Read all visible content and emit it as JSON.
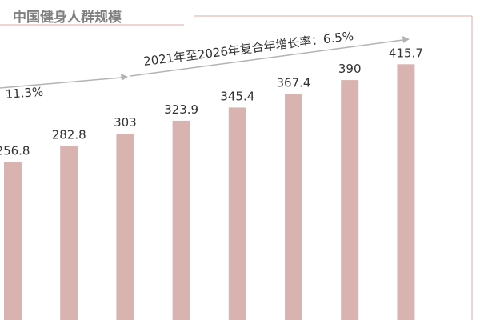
{
  "chart_data": {
    "type": "bar",
    "title": "中国健身人群规模",
    "categories": [
      "",
      "",
      "",
      "",
      "",
      "",
      "",
      ""
    ],
    "values": [
      256.8,
      282.8,
      303,
      323.9,
      345.4,
      367.4,
      390,
      415.7
    ],
    "value_labels": [
      "256.8",
      "282.8",
      "303",
      "323.9",
      "345.4",
      "367.4",
      "390",
      "415.7"
    ],
    "ylim": [
      0,
      460
    ],
    "grid": false,
    "bar_color": "#d9b3b0",
    "annotations": [
      {
        "text": "：11.3%"
      },
      {
        "text": "2021年至2026年复合年增长率：6.5%"
      }
    ]
  }
}
